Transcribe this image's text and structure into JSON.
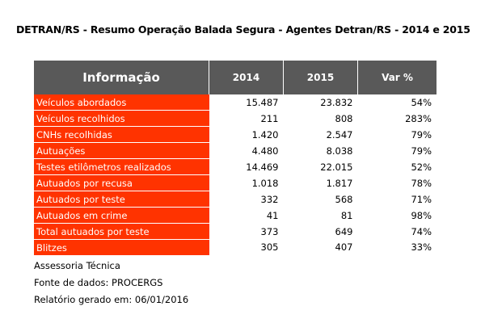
{
  "title": "DETRAN/RS - Resumo Operação Balada Segura - Agentes Detran/RS - 2014 e 2015",
  "table": {
    "header": [
      "Informação",
      "2014",
      "2015",
      "Var %"
    ],
    "rows": [
      [
        "Veículos abordados",
        "15.487",
        "23.832",
        "54%"
      ],
      [
        "Veículos recolhidos",
        "211",
        "808",
        "283%"
      ],
      [
        "CNHs recolhidas",
        "1.420",
        "2.547",
        "79%"
      ],
      [
        "Autuações",
        "4.480",
        "8.038",
        "79%"
      ],
      [
        "Testes etilômetros realizados",
        "14.469",
        "22.015",
        "52%"
      ],
      [
        "Autuados por recusa",
        "1.018",
        "1.817",
        "78%"
      ],
      [
        "Autuados por teste",
        "332",
        "568",
        "71%"
      ],
      [
        "Autuados em crime",
        "41",
        "81",
        "98%"
      ],
      [
        "Total autuados por teste",
        "373",
        "649",
        "74%"
      ],
      [
        "Blitzes",
        "305",
        "407",
        "33%"
      ]
    ]
  },
  "footer": [
    "Assessoria Técnica",
    "Fonte de dados: PROCERGS",
    "Relatório gerado em: 06/01/2016"
  ]
}
